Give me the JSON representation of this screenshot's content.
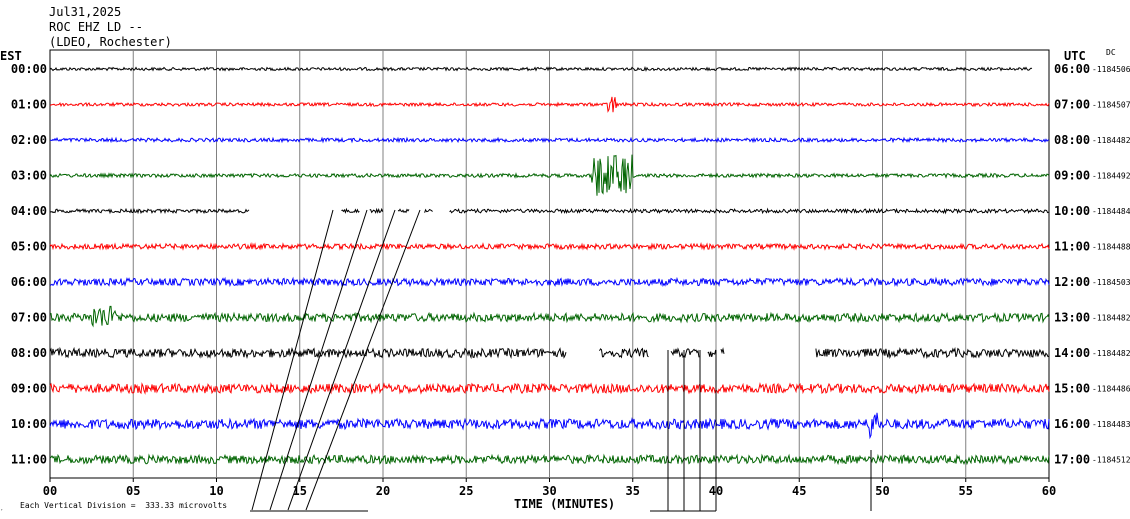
{
  "header": {
    "date": "Jul31,2025",
    "station": "ROC EHZ LD --",
    "network": "(LDEO, Rochester)"
  },
  "left_zone": "EST",
  "right_zone": "UTC",
  "dc_header": "DC",
  "footer": {
    "scale_note": "Each Vertical Division =  333.33 microvolts",
    "xlabel": "TIME (MINUTES)"
  },
  "chart_data": {
    "type": "line",
    "title": "",
    "xlabel": "TIME (MINUTES)",
    "xlim": [
      0,
      60
    ],
    "xticks": [
      "00",
      "05",
      "10",
      "15",
      "20",
      "25",
      "30",
      "35",
      "40",
      "45",
      "50",
      "55",
      "60"
    ],
    "grid": true,
    "colors": [
      "#000000",
      "#ff0000",
      "#0000ff",
      "#006400"
    ],
    "rows": [
      {
        "est": "00:00",
        "utc": "06:00",
        "dc": "-1184506",
        "color": "#000000",
        "amp": 1.5,
        "end": 59
      },
      {
        "est": "01:00",
        "utc": "07:00",
        "dc": "-1184507",
        "color": "#ff0000",
        "amp": 1.6,
        "end": 60
      },
      {
        "est": "02:00",
        "utc": "08:00",
        "dc": "-1184482",
        "color": "#0000ff",
        "amp": 1.8,
        "end": 60
      },
      {
        "est": "03:00",
        "utc": "09:00",
        "dc": "-1184492",
        "color": "#006400",
        "amp": 1.8,
        "end": 60
      },
      {
        "est": "04:00",
        "utc": "10:00",
        "dc": "-1184484",
        "color": "#000000",
        "amp": 1.8,
        "end": 60
      },
      {
        "est": "05:00",
        "utc": "11:00",
        "dc": "-1184488",
        "color": "#ff0000",
        "amp": 2.6,
        "end": 60
      },
      {
        "est": "06:00",
        "utc": "12:00",
        "dc": "-1184503",
        "color": "#0000ff",
        "amp": 3.6,
        "end": 60
      },
      {
        "est": "07:00",
        "utc": "13:00",
        "dc": "-1184482",
        "color": "#006400",
        "amp": 4.2,
        "end": 60
      },
      {
        "est": "08:00",
        "utc": "14:00",
        "dc": "-1184482",
        "color": "#000000",
        "amp": 4.4,
        "end": 60
      },
      {
        "est": "09:00",
        "utc": "15:00",
        "dc": "-1184486",
        "color": "#ff0000",
        "amp": 4.6,
        "end": 60
      },
      {
        "est": "10:00",
        "utc": "16:00",
        "dc": "-1184483",
        "color": "#0000ff",
        "amp": 5.0,
        "end": 60
      },
      {
        "est": "11:00",
        "utc": "17:00",
        "dc": "-1184512",
        "color": "#006400",
        "amp": 4.2,
        "end": 60
      }
    ],
    "events": [
      {
        "row": 3,
        "start_min": 32.5,
        "end_min": 35.0,
        "amp": 22,
        "note": "burst"
      },
      {
        "row": 1,
        "start_min": 33.5,
        "end_min": 34.0,
        "amp": 10,
        "note": "spike"
      },
      {
        "row": 7,
        "start_min": 2.5,
        "end_min": 4.0,
        "amp": 12,
        "note": "spike"
      },
      {
        "row": 8,
        "start_min": 31.5,
        "end_min": 32.2,
        "amp": 40,
        "note": "spike"
      },
      {
        "row": 10,
        "start_min": 49.2,
        "end_min": 49.8,
        "amp": 16,
        "note": "spike"
      }
    ],
    "gaps": [
      {
        "row": 4,
        "segments": [
          [
            0,
            12
          ],
          [
            17.5,
            18.6
          ],
          [
            19.2,
            20
          ],
          [
            20.9,
            21.6
          ],
          [
            22.5,
            23
          ],
          [
            24,
            60
          ]
        ]
      },
      {
        "row": 8,
        "segments": [
          [
            0,
            31
          ],
          [
            33,
            36
          ],
          [
            37.3,
            39
          ],
          [
            39.5,
            40
          ],
          [
            40.3,
            40.5
          ],
          [
            46,
            60
          ]
        ]
      }
    ]
  }
}
